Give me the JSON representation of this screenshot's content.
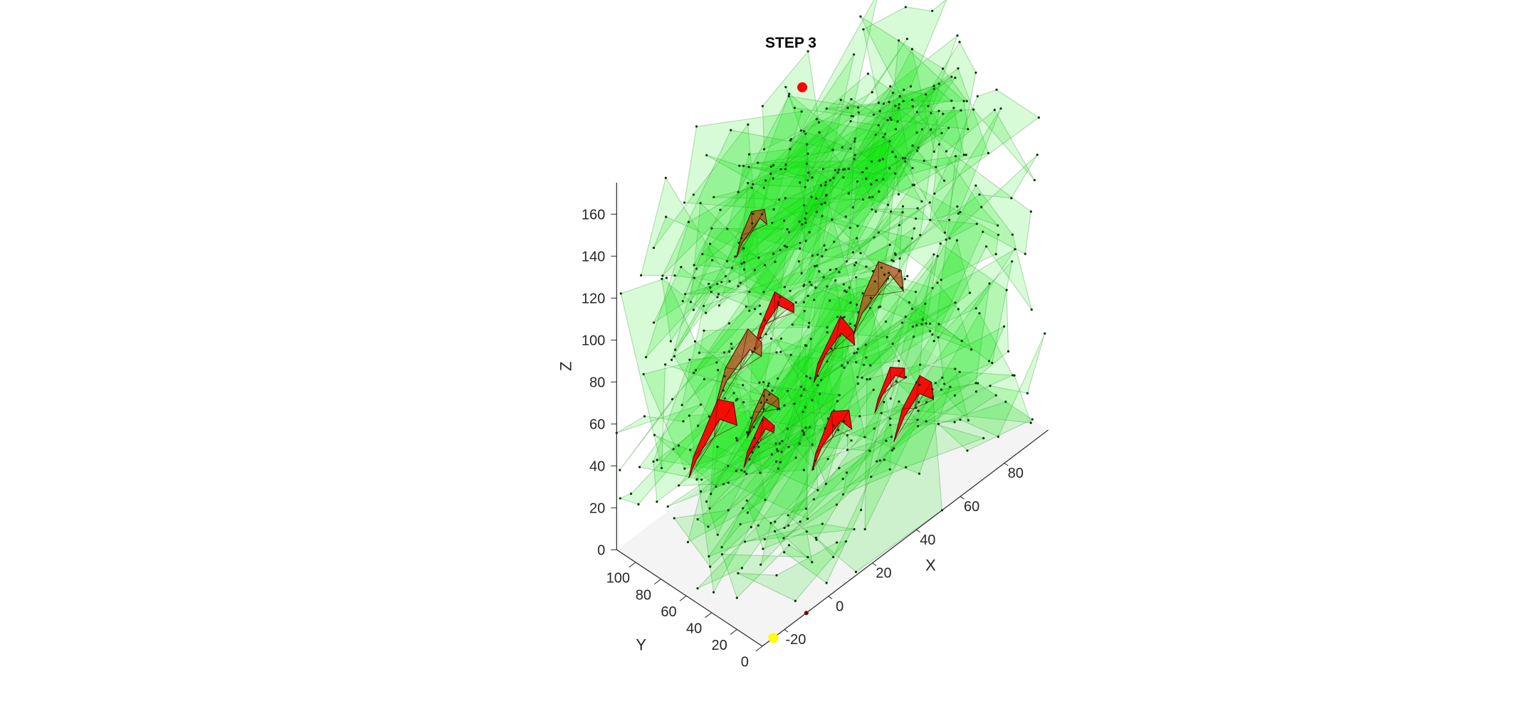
{
  "chart_data": {
    "type": "scatter",
    "title": "STEP 3",
    "xlabel": "X",
    "ylabel": "Y",
    "zlabel": "Z",
    "x_ticks": [
      "-20",
      "0",
      "20",
      "40",
      "60",
      "80"
    ],
    "y_ticks": [
      "0",
      "20",
      "40",
      "60",
      "80",
      "100"
    ],
    "z_ticks": [
      "0",
      "20",
      "40",
      "60",
      "80",
      "100",
      "120",
      "140",
      "160"
    ],
    "xlim": [
      -30,
      100
    ],
    "ylim": [
      0,
      115
    ],
    "zlim": [
      0,
      175
    ],
    "grid": false,
    "box": true,
    "view": "3d-isometric",
    "series": [
      {
        "role": "free-space polyhedra",
        "color": "#00e600",
        "opacity": 0.25
      },
      {
        "role": "obstacle polyhedra",
        "color": "#ff0000",
        "centers": [
          [
            0,
            60,
            150
          ],
          [
            10,
            60,
            100
          ],
          [
            0,
            70,
            80
          ],
          [
            5,
            60,
            60
          ],
          [
            20,
            30,
            90
          ],
          [
            40,
            30,
            100
          ],
          [
            40,
            20,
            60
          ],
          [
            45,
            10,
            50
          ],
          [
            0,
            90,
            40
          ],
          [
            15,
            80,
            30
          ],
          [
            25,
            40,
            40
          ]
        ]
      },
      {
        "role": "goal point",
        "color": "#ff0000",
        "points": [
          [
            40,
            90,
            175
          ]
        ]
      },
      {
        "role": "start point",
        "color": "#ffff00",
        "points": [
          [
            -25,
            0,
            0
          ]
        ]
      },
      {
        "role": "marker",
        "color": "#800000",
        "points": [
          [
            -10,
            0,
            0
          ]
        ]
      }
    ]
  }
}
